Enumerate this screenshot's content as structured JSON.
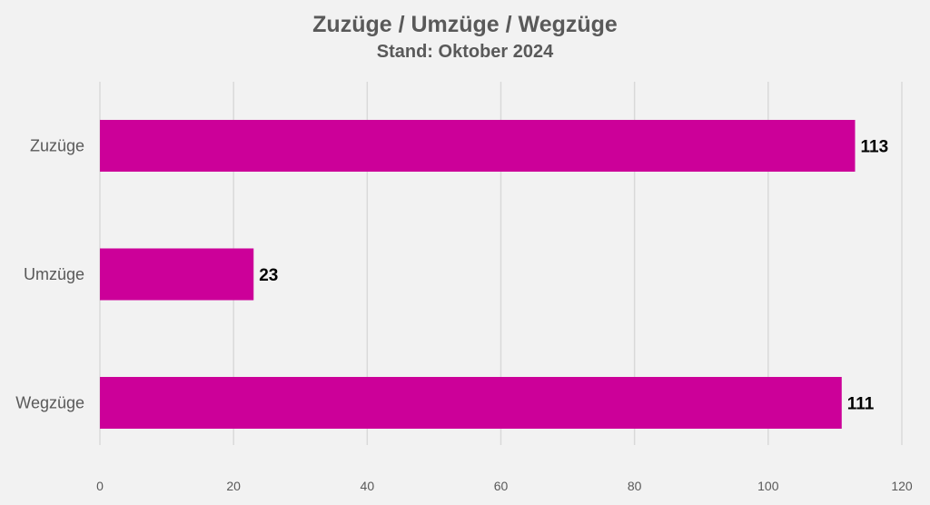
{
  "chart_data": {
    "type": "bar",
    "orientation": "horizontal",
    "title": "Zuzüge / Umzüge / Wegzüge",
    "subtitle": "Stand: Oktober 2024",
    "categories": [
      "Zuzüge",
      "Umzüge",
      "Wegzüge"
    ],
    "values": [
      113,
      23,
      111
    ],
    "value_labels": [
      "113",
      "23",
      "111"
    ],
    "xlim": [
      0,
      120
    ],
    "x_ticks": [
      0,
      20,
      40,
      60,
      80,
      100,
      120
    ],
    "x_tick_labels": [
      "0",
      "20",
      "40",
      "60",
      "80",
      "100",
      "120"
    ],
    "xlabel": "",
    "ylabel": "",
    "grid": "vertical",
    "legend": "none",
    "bar_color": "#cc0099",
    "background_color": "#f2f2f2",
    "text_color": "#595959",
    "grid_color": "#d9d9d9"
  }
}
